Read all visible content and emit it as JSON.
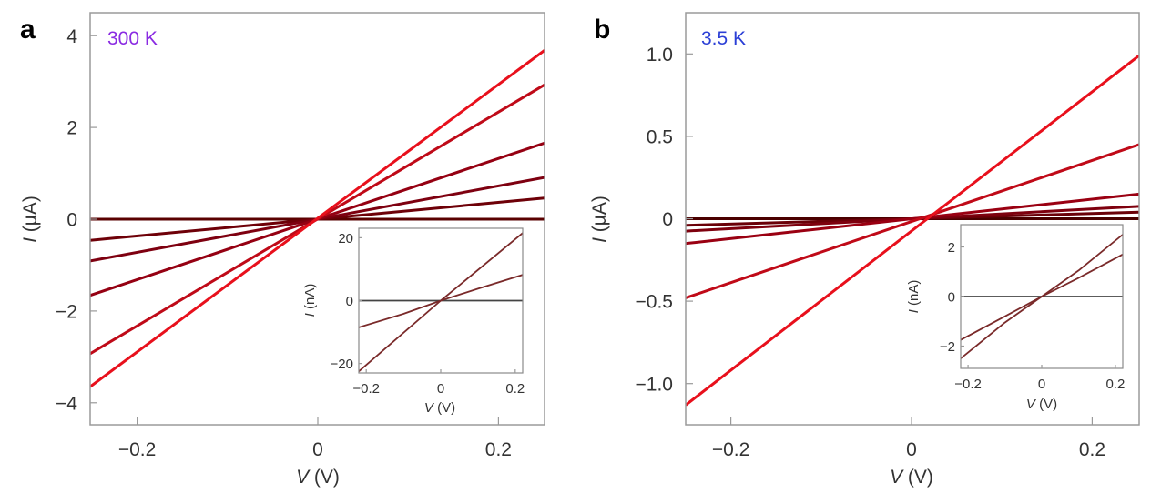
{
  "chart_data": [
    {
      "type": "line",
      "panel_label": "a",
      "annotation": "300 K",
      "annotation_color": "#8a2be2",
      "xlabel_italic": "V",
      "xlabel_unit": " (V)",
      "ylabel_italic": "I",
      "ylabel_unit": " (µA)",
      "xlim": [
        -0.252,
        0.251
      ],
      "ylim": [
        -4.48,
        4.5
      ],
      "xticks": [
        -0.2,
        0,
        0.2
      ],
      "xtick_labels": [
        "−0.2",
        "0",
        "0.2"
      ],
      "yticks": [
        4,
        2,
        0,
        -2,
        -4
      ],
      "ytick_labels": [
        "4",
        "2",
        "0",
        "−2",
        "−4"
      ],
      "grid": false,
      "series": [
        {
          "name": "curve-1",
          "color": "#5a0000",
          "x": [
            -0.252,
            0.251
          ],
          "y": [
            0.0,
            0.0
          ]
        },
        {
          "name": "curve-2",
          "color": "#6e0008",
          "x": [
            -0.252,
            0.251
          ],
          "y": [
            -0.46,
            0.46
          ]
        },
        {
          "name": "curve-3",
          "color": "#7e0010",
          "x": [
            -0.252,
            0.251
          ],
          "y": [
            -0.91,
            0.91
          ]
        },
        {
          "name": "curve-4",
          "color": "#950012",
          "x": [
            -0.252,
            0.251
          ],
          "y": [
            -1.66,
            1.66
          ]
        },
        {
          "name": "curve-5",
          "color": "#bf0a18",
          "x": [
            -0.252,
            0.251
          ],
          "y": [
            -2.93,
            2.93
          ]
        },
        {
          "name": "curve-6",
          "color": "#e8101c",
          "x": [
            -0.252,
            0.251
          ],
          "y": [
            -3.65,
            3.68
          ]
        }
      ],
      "inset": {
        "xlabel_italic": "V",
        "xlabel_unit": " (V)",
        "ylabel_italic": "I",
        "ylabel_unit": " (nA)",
        "xlim": [
          -0.22,
          0.22
        ],
        "ylim": [
          -23,
          23
        ],
        "xticks": [
          -0.2,
          0,
          0.2
        ],
        "xtick_labels": [
          "−0.2",
          "0",
          "0.2"
        ],
        "yticks": [
          20,
          0,
          -20
        ],
        "ytick_labels": [
          "20",
          "0",
          "−20"
        ],
        "series": [
          {
            "name": "inset-curve-1",
            "color": "#444444",
            "x": [
              -0.22,
              0.22
            ],
            "y": [
              0.0,
              0.0
            ]
          },
          {
            "name": "inset-curve-2",
            "color": "#7a2a2a",
            "x": [
              -0.22,
              -0.1,
              0,
              0.1,
              0.22
            ],
            "y": [
              -8.5,
              -4.2,
              0,
              3.8,
              8.2
            ]
          },
          {
            "name": "inset-curve-3",
            "color": "#7a2a2a",
            "x": [
              -0.22,
              0,
              0.22
            ],
            "y": [
              -22.5,
              0,
              21.5
            ]
          }
        ]
      }
    },
    {
      "type": "line",
      "panel_label": "b",
      "annotation": "3.5 K",
      "annotation_color": "#2b3fd6",
      "xlabel_italic": "V",
      "xlabel_unit": " (V)",
      "ylabel_italic": "I",
      "ylabel_unit": " (µA)",
      "xlim": [
        -0.25,
        0.252
      ],
      "ylim": [
        -1.25,
        1.25
      ],
      "xticks": [
        -0.2,
        0,
        0.2
      ],
      "xtick_labels": [
        "−0.2",
        "0",
        "0.2"
      ],
      "yticks": [
        1.0,
        0.5,
        0,
        -0.5,
        -1.0
      ],
      "ytick_labels": [
        "1.0",
        "0.5",
        "0",
        "−0.5",
        "−1.0"
      ],
      "grid": false,
      "series": [
        {
          "name": "curve-1",
          "color": "#4a0000",
          "x": [
            -0.25,
            0.252
          ],
          "y": [
            0.0,
            0.0
          ]
        },
        {
          "name": "curve-2",
          "color": "#6a0008",
          "x": [
            -0.25,
            0.252
          ],
          "y": [
            -0.04,
            0.04
          ]
        },
        {
          "name": "curve-3",
          "color": "#7e000e",
          "x": [
            -0.25,
            0.252
          ],
          "y": [
            -0.075,
            0.075
          ]
        },
        {
          "name": "curve-4",
          "color": "#9a0012",
          "x": [
            -0.25,
            0.252
          ],
          "y": [
            -0.15,
            0.15
          ]
        },
        {
          "name": "curve-5",
          "color": "#c00a18",
          "x": [
            -0.25,
            0.252
          ],
          "y": [
            -0.48,
            0.45
          ]
        },
        {
          "name": "curve-6",
          "color": "#e8101c",
          "x": [
            -0.25,
            0.252
          ],
          "y": [
            -1.13,
            0.99
          ]
        }
      ],
      "inset": {
        "xlabel_italic": "V",
        "xlabel_unit": " (V)",
        "ylabel_italic": "I",
        "ylabel_unit": " (nA)",
        "xlim": [
          -0.22,
          0.22
        ],
        "ylim": [
          -2.9,
          2.9
        ],
        "xticks": [
          -0.2,
          0,
          0.2
        ],
        "xtick_labels": [
          "−0.2",
          "0",
          "0.2"
        ],
        "yticks": [
          2,
          0,
          -2
        ],
        "ytick_labels": [
          "2",
          "0",
          "−2"
        ],
        "series": [
          {
            "name": "inset-curve-1",
            "color": "#444444",
            "x": [
              -0.22,
              0.22
            ],
            "y": [
              0.0,
              0.0
            ]
          },
          {
            "name": "inset-curve-2",
            "color": "#7a2a2a",
            "x": [
              -0.22,
              -0.1,
              0,
              0.1,
              0.22
            ],
            "y": [
              -1.75,
              -0.8,
              0,
              0.75,
              1.7
            ]
          },
          {
            "name": "inset-curve-3",
            "color": "#7a2a2a",
            "x": [
              -0.22,
              -0.1,
              0,
              0.1,
              0.22
            ],
            "y": [
              -2.5,
              -1.05,
              0,
              1.05,
              2.5
            ]
          }
        ]
      }
    }
  ]
}
